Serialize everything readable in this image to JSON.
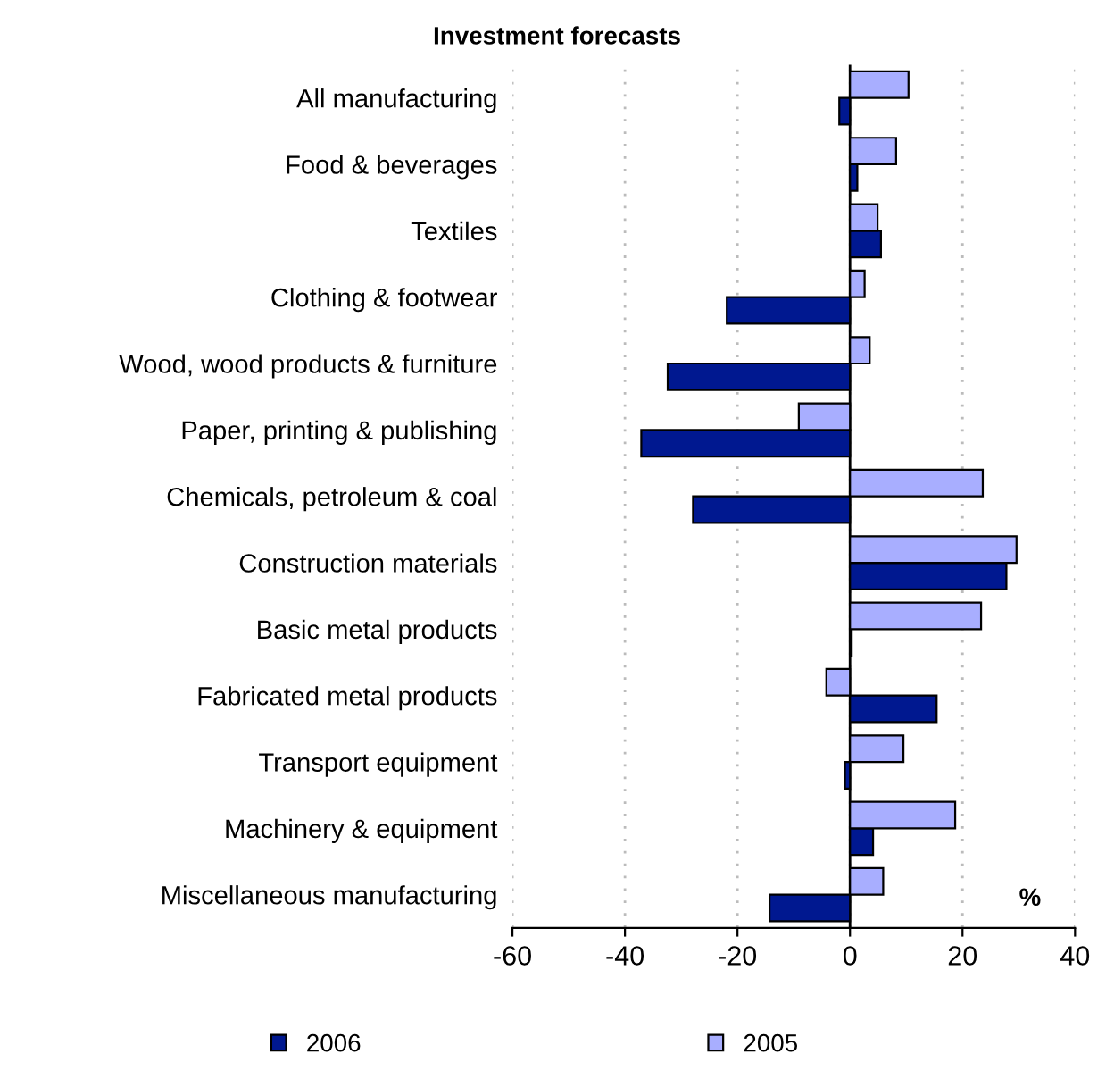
{
  "chart_data": {
    "type": "bar",
    "orientation": "horizontal",
    "title": "Investment forecasts",
    "categories": [
      "All manufacturing",
      "Food & beverages",
      "Textiles",
      "Clothing & footwear",
      "Wood, wood products & furniture",
      "Paper, printing & publishing",
      "Chemicals, petroleum & coal",
      "Construction materials",
      "Basic metal products",
      "Fabricated metal products",
      "Transport equipment",
      "Machinery & equipment",
      "Miscellaneous manufacturing"
    ],
    "series": [
      {
        "name": "2006",
        "color": "#001890",
        "values": [
          -1.9,
          1.3,
          5.5,
          -21.9,
          -32.4,
          -37.1,
          -27.9,
          27.8,
          0.3,
          15.4,
          -0.9,
          4.1,
          -14.3
        ]
      },
      {
        "name": "2005",
        "color": "#a8aeff",
        "values": [
          10.4,
          8.2,
          4.9,
          2.6,
          3.5,
          -9.1,
          23.6,
          29.6,
          23.3,
          -4.2,
          9.5,
          18.7,
          5.9
        ]
      }
    ],
    "xlim": [
      -60,
      40
    ],
    "xticks": [
      -60,
      -40,
      -20,
      0,
      20,
      40
    ],
    "ref_lines": [
      {
        "axis": "x",
        "value": 0,
        "color": "#000000"
      }
    ],
    "annotations": [
      "%"
    ],
    "grid": "x",
    "legend": "bottom"
  }
}
